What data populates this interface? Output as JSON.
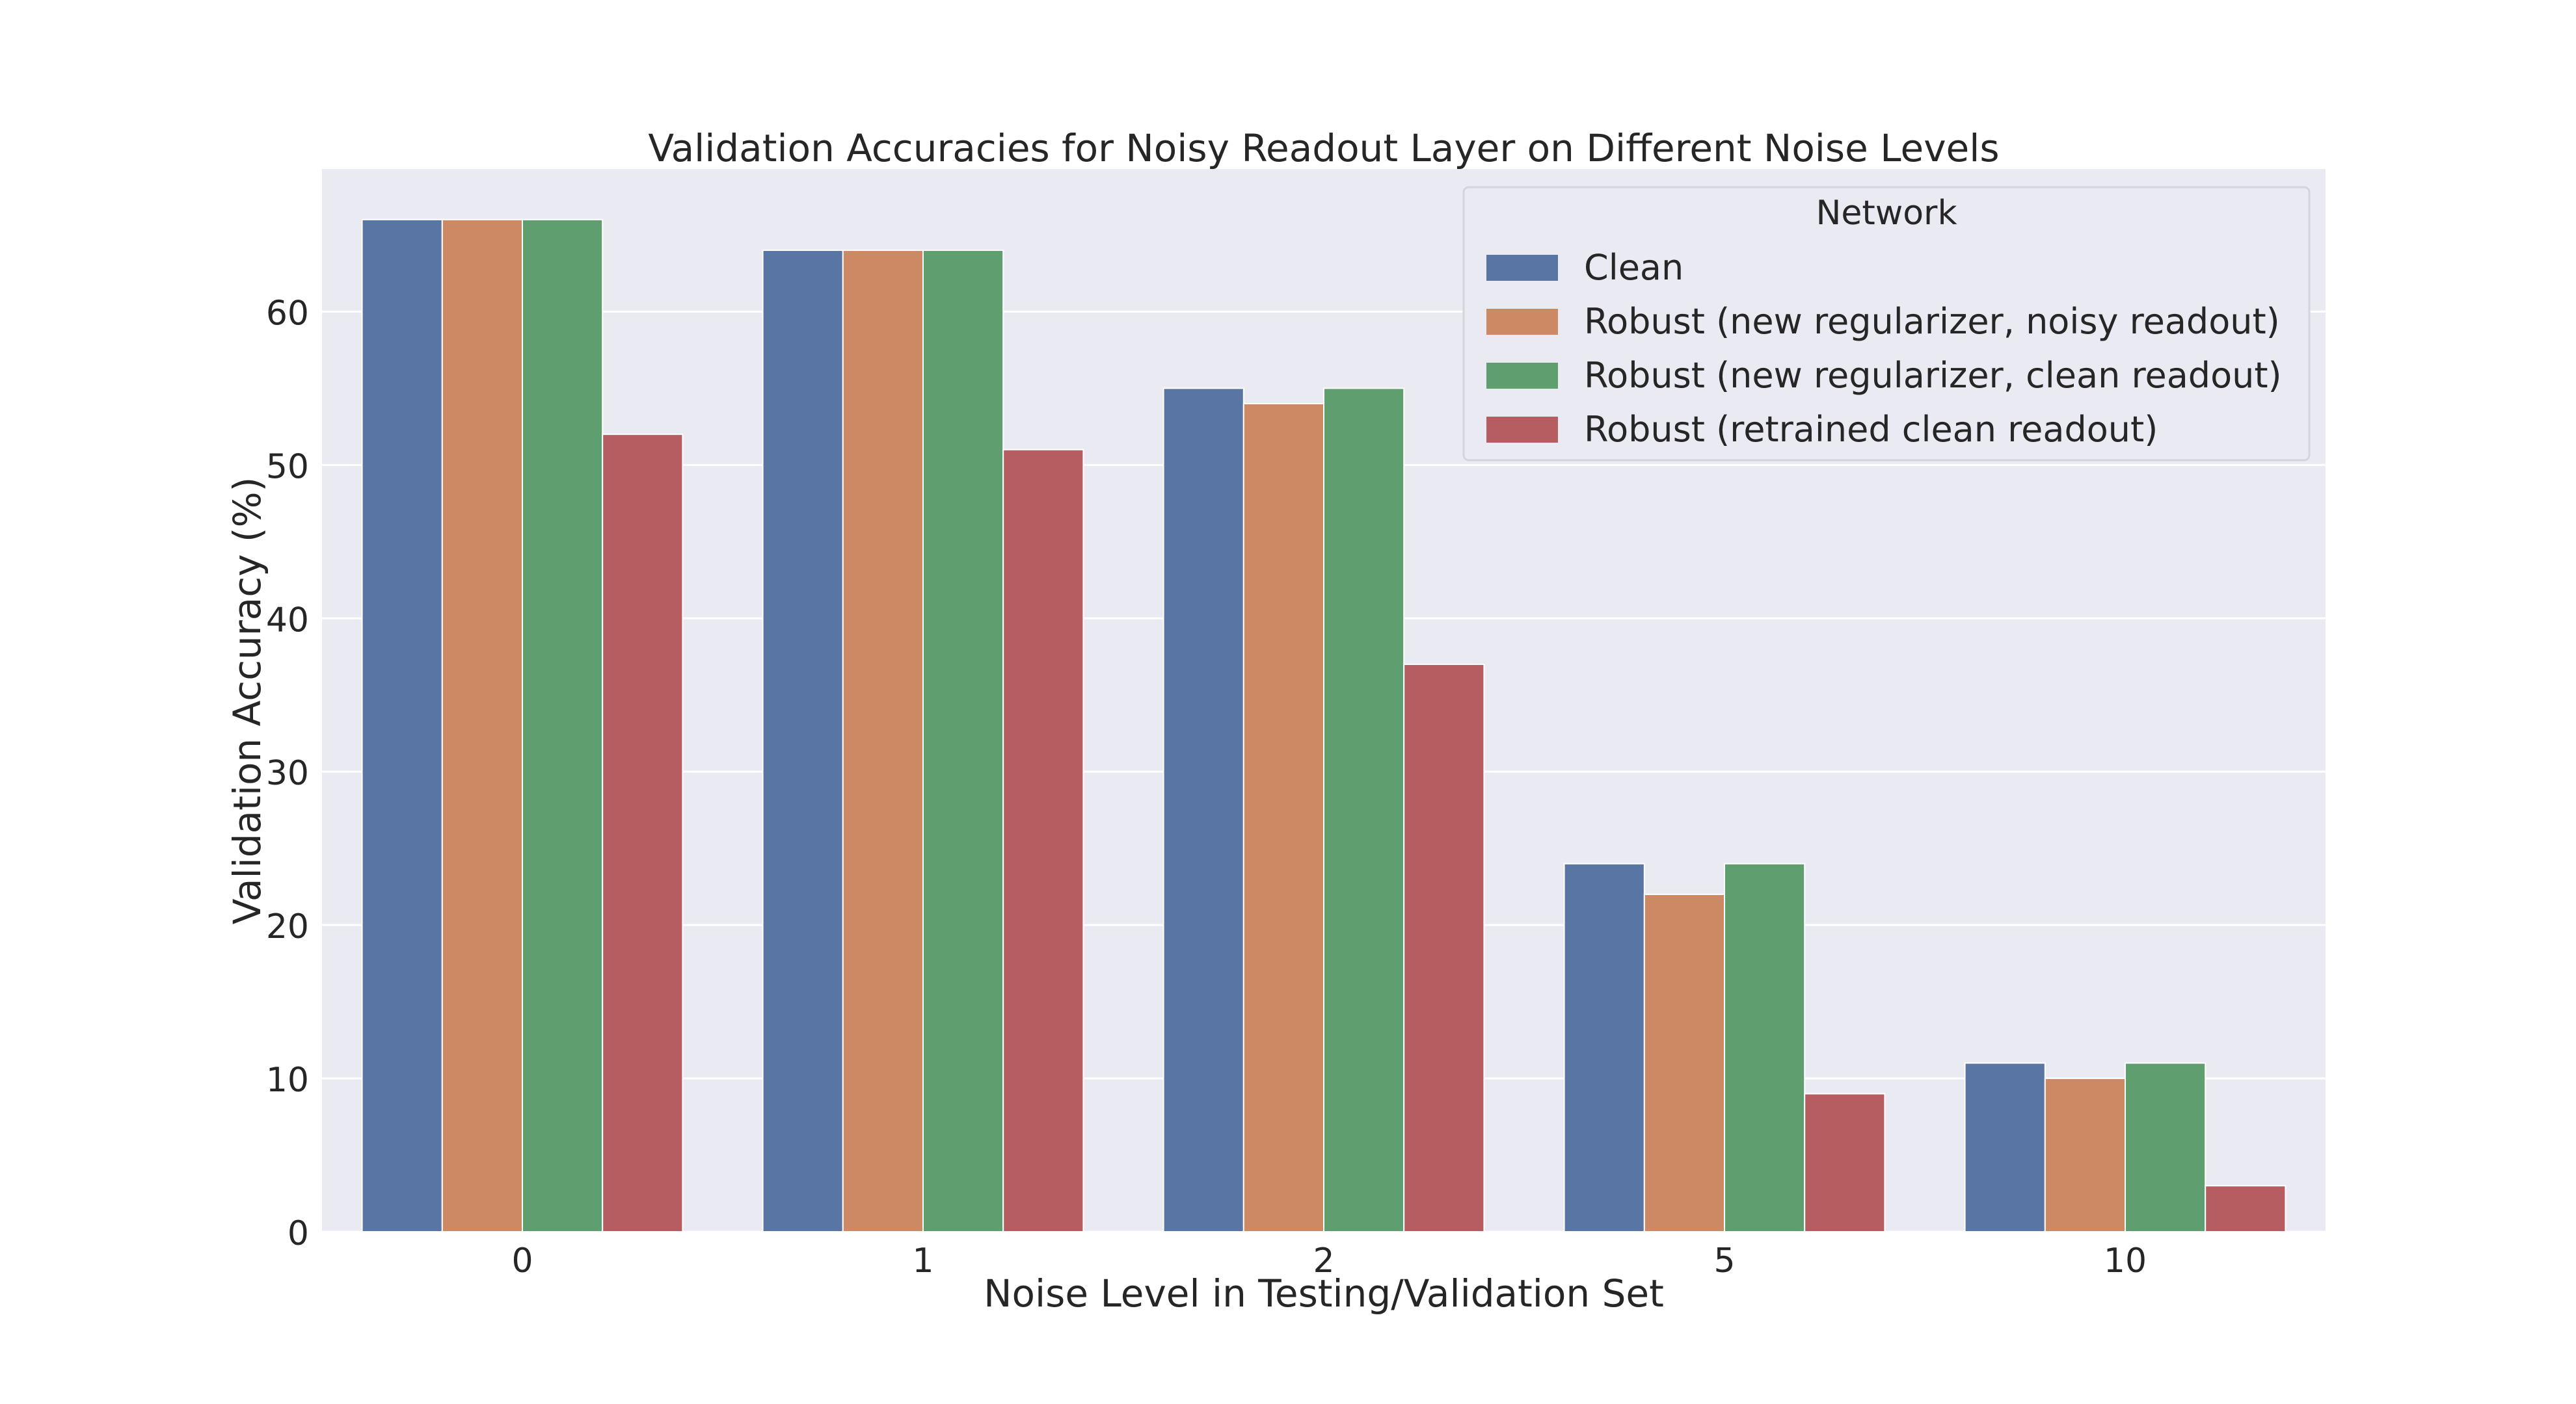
{
  "chart_data": {
    "type": "bar",
    "title": "Validation Accuracies for Noisy Readout Layer on Different Noise Levels",
    "xlabel": "Noise Level in Testing/Validation Set",
    "ylabel": "Validation Accuracy (%)",
    "categories": [
      "0",
      "1",
      "2",
      "5",
      "10"
    ],
    "ylim": [
      0,
      69.3
    ],
    "yticks": [
      0,
      10,
      20,
      30,
      40,
      50,
      60
    ],
    "grid": true,
    "legend": {
      "title": "Network",
      "placement": "top-right"
    },
    "series": [
      {
        "name": "Clean",
        "color": "#5875a4",
        "values": [
          66,
          64,
          55,
          24,
          11
        ]
      },
      {
        "name": "Robust (new regularizer, noisy readout)",
        "color": "#cc8963",
        "values": [
          66,
          64,
          54,
          22,
          10
        ]
      },
      {
        "name": "Robust (new regularizer, clean readout)",
        "color": "#5f9e6e",
        "values": [
          66,
          64,
          55,
          24,
          11
        ]
      },
      {
        "name": "Robust (retrained clean readout)",
        "color": "#b55d60",
        "values": [
          52,
          51,
          37,
          9,
          3
        ]
      }
    ]
  }
}
